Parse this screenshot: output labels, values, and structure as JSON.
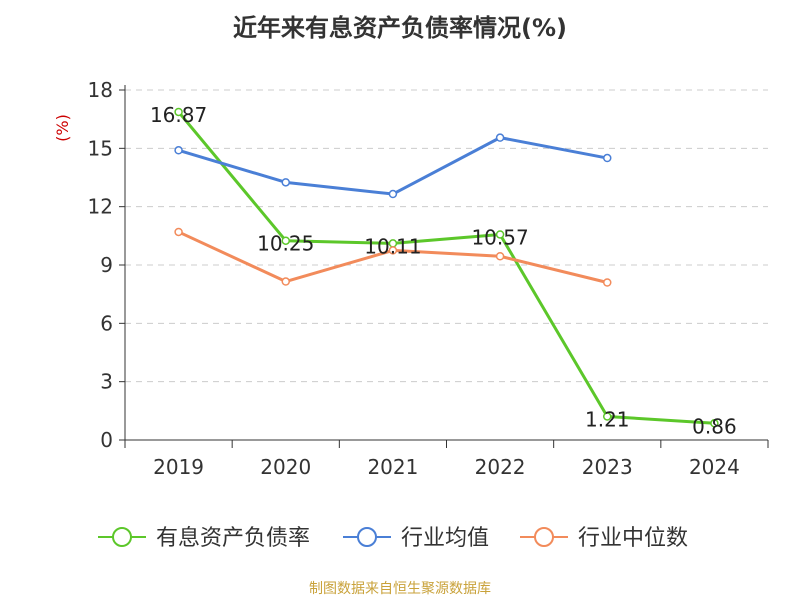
{
  "chart_data": {
    "type": "line",
    "title": "近年来有息资产负债率情况(%)",
    "ylabel": "(%)",
    "categories": [
      "2019",
      "2020",
      "2021",
      "2022",
      "2023",
      "2024"
    ],
    "ylim": [
      0,
      18
    ],
    "yticks": [
      0,
      3,
      6,
      9,
      12,
      15,
      18
    ],
    "grid": true,
    "legend_position": "bottom",
    "series": [
      {
        "name": "有息资产负债率",
        "color": "#5cc72a",
        "values": [
          16.87,
          10.25,
          10.11,
          10.57,
          1.21,
          0.86
        ],
        "labels": [
          "16.87",
          "10.25",
          "10.11",
          "10.57",
          "1.21",
          "0.86"
        ]
      },
      {
        "name": "行业均值",
        "color": "#4a7fd6",
        "values": [
          14.9,
          13.25,
          12.65,
          15.55,
          14.5,
          null
        ]
      },
      {
        "name": "行业中位数",
        "color": "#f28b5b",
        "values": [
          10.7,
          8.15,
          9.75,
          9.45,
          8.1,
          null
        ]
      }
    ]
  },
  "footer": {
    "source": "制图数据来自恒生聚源数据库"
  }
}
